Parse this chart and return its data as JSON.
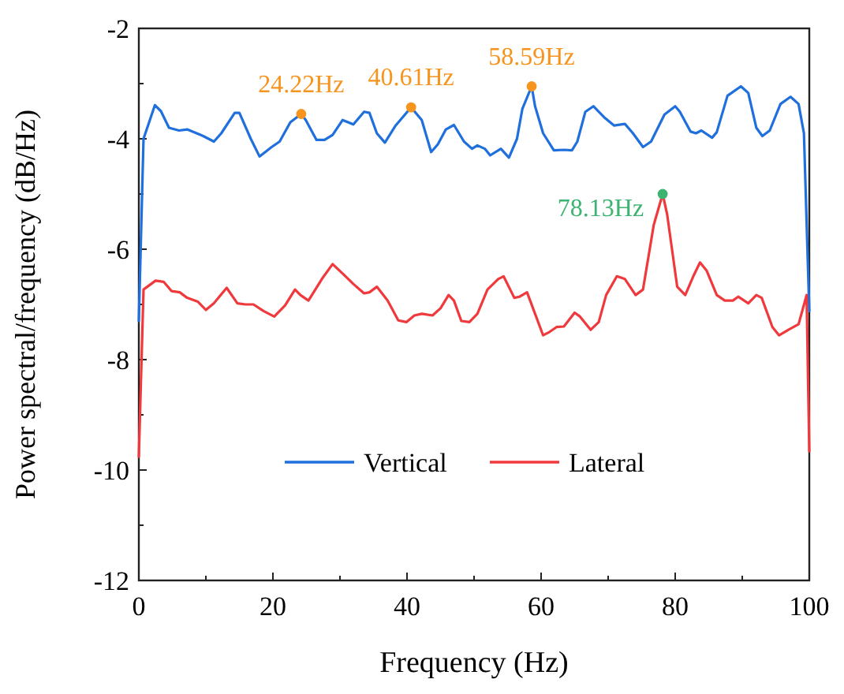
{
  "chart_data": {
    "type": "line",
    "xlabel": "Frequency (Hz)",
    "ylabel": "Power spectral/frequency (dB/Hz)",
    "xlim": [
      0,
      100
    ],
    "ylim": [
      -12,
      -2
    ],
    "xticks": [
      0,
      {
        "value": 10,
        "label": null
      },
      20,
      {
        "value": 30,
        "label": null
      },
      40,
      {
        "value": 50,
        "label": null
      },
      60,
      {
        "value": 70,
        "label": null
      },
      80,
      {
        "value": 90,
        "label": null
      },
      100
    ],
    "yticks": [
      -12,
      {
        "value": -11,
        "label": null
      },
      -10,
      {
        "value": -9,
        "label": null
      },
      -8,
      {
        "value": -7,
        "label": null
      },
      -6,
      {
        "value": -5,
        "label": null
      },
      -4,
      {
        "value": -3,
        "label": null
      },
      -2
    ],
    "grid": false,
    "legend": "bottom",
    "marker": "none",
    "line_style": "solid",
    "series": [
      {
        "name": "Vertical",
        "color": "#1f6fdc",
        "x": [
          0,
          0.7,
          2.4,
          3.3,
          4.5,
          6,
          7.2,
          9.6,
          11.2,
          12.3,
          14.3,
          15,
          16.7,
          18,
          19.8,
          21,
          22.6,
          24.22,
          24.9,
          26.5,
          27.7,
          28.9,
          30.4,
          32,
          33.6,
          34.4,
          35.5,
          36.7,
          38.3,
          40.61,
          42.2,
          43.6,
          44.6,
          45.8,
          47,
          48.5,
          49.7,
          50.5,
          51.6,
          52.4,
          54,
          55.2,
          56.4,
          57.2,
          58.59,
          59.1,
          60.3,
          61.9,
          63.4,
          64.6,
          65.4,
          66.6,
          67.8,
          69.4,
          70.9,
          72.5,
          73.7,
          75.2,
          76.4,
          78.4,
          80,
          80.7,
          82.3,
          83.1,
          83.9,
          85.5,
          86.2,
          87.8,
          89.8,
          90.9,
          92.1,
          93,
          94.1,
          95.7,
          97.2,
          98.4,
          99.2,
          100
        ],
        "values": [
          -7.3,
          -4.0,
          -3.39,
          -3.5,
          -3.8,
          -3.85,
          -3.83,
          -3.95,
          -4.05,
          -3.9,
          -3.53,
          -3.53,
          -4.0,
          -4.32,
          -4.15,
          -4.05,
          -3.7,
          -3.55,
          -3.66,
          -4.02,
          -4.02,
          -3.93,
          -3.66,
          -3.74,
          -3.51,
          -3.53,
          -3.9,
          -4.07,
          -3.76,
          -3.43,
          -3.66,
          -4.24,
          -4.1,
          -3.83,
          -3.75,
          -4.05,
          -4.18,
          -4.12,
          -4.18,
          -4.3,
          -4.18,
          -4.34,
          -4.0,
          -3.46,
          -3.05,
          -3.41,
          -3.9,
          -4.21,
          -4.2,
          -4.21,
          -4.05,
          -3.51,
          -3.41,
          -3.61,
          -3.76,
          -3.73,
          -3.9,
          -4.15,
          -4.05,
          -3.56,
          -3.41,
          -3.51,
          -3.87,
          -3.9,
          -3.85,
          -3.98,
          -3.88,
          -3.22,
          -3.05,
          -3.17,
          -3.8,
          -3.95,
          -3.85,
          -3.37,
          -3.24,
          -3.37,
          -3.9,
          -7.12
        ]
      },
      {
        "name": "Lateral",
        "color": "#f0393c",
        "x": [
          0,
          0.7,
          2.5,
          3.7,
          4.9,
          6.1,
          7.2,
          8.8,
          10,
          11.2,
          13.1,
          14.7,
          15.9,
          17.1,
          18.6,
          20.2,
          21.8,
          23.3,
          24.1,
          25.3,
          27.3,
          28.9,
          30.4,
          32,
          33.6,
          34.4,
          35.5,
          37.1,
          38.7,
          39.9,
          41.1,
          42.2,
          43.8,
          45,
          46.2,
          47,
          48.1,
          49.3,
          50.5,
          52,
          53.6,
          54.4,
          56,
          56.8,
          57.9,
          59.1,
          60.3,
          61.1,
          62.3,
          63.4,
          65,
          65.8,
          67.4,
          68.6,
          69.7,
          71.3,
          72.5,
          74.1,
          75.2,
          76.8,
          78.13,
          78.8,
          80.3,
          81.5,
          82.7,
          83.7,
          84.7,
          86.2,
          87.4,
          88.6,
          89.4,
          90.9,
          92.1,
          92.9,
          94.5,
          95.5,
          96.9,
          98.4,
          99.6,
          100
        ],
        "values": [
          -9.76,
          -6.73,
          -6.57,
          -6.59,
          -6.76,
          -6.78,
          -6.88,
          -6.95,
          -7.1,
          -6.98,
          -6.7,
          -6.98,
          -7.0,
          -7.0,
          -7.12,
          -7.22,
          -7.02,
          -6.73,
          -6.83,
          -6.93,
          -6.54,
          -6.27,
          -6.44,
          -6.63,
          -6.8,
          -6.78,
          -6.68,
          -6.93,
          -7.29,
          -7.32,
          -7.2,
          -7.17,
          -7.2,
          -7.07,
          -6.83,
          -6.93,
          -7.3,
          -7.32,
          -7.17,
          -6.73,
          -6.54,
          -6.49,
          -6.88,
          -6.86,
          -6.78,
          -7.17,
          -7.56,
          -7.51,
          -7.41,
          -7.4,
          -7.15,
          -7.22,
          -7.46,
          -7.32,
          -6.83,
          -6.49,
          -6.54,
          -6.83,
          -6.73,
          -5.56,
          -5.0,
          -5.37,
          -6.68,
          -6.83,
          -6.49,
          -6.24,
          -6.39,
          -6.83,
          -6.93,
          -6.93,
          -6.86,
          -6.98,
          -6.83,
          -6.88,
          -7.41,
          -7.56,
          -7.46,
          -7.36,
          -6.83,
          -9.66
        ]
      },
      {
        "type": "scatter",
        "marker": "circle",
        "color": "#f7941d",
        "x": [
          24.22,
          40.61,
          58.59
        ],
        "values": [
          -3.55,
          -3.43,
          -3.05
        ]
      },
      {
        "type": "scatter",
        "marker": "circle",
        "color": "#3cb371",
        "x": [
          78.13
        ],
        "values": [
          -5.0
        ]
      }
    ],
    "annotations": [
      {
        "text": "24.22Hz",
        "x": 24.22,
        "y": -3.55
      },
      {
        "text": "40.61Hz",
        "x": 40.61,
        "y": -3.43
      },
      {
        "text": "58.59Hz",
        "x": 58.59,
        "y": -3.05
      },
      {
        "text": "78.13Hz",
        "x": 78.13,
        "y": -5.0
      }
    ]
  }
}
